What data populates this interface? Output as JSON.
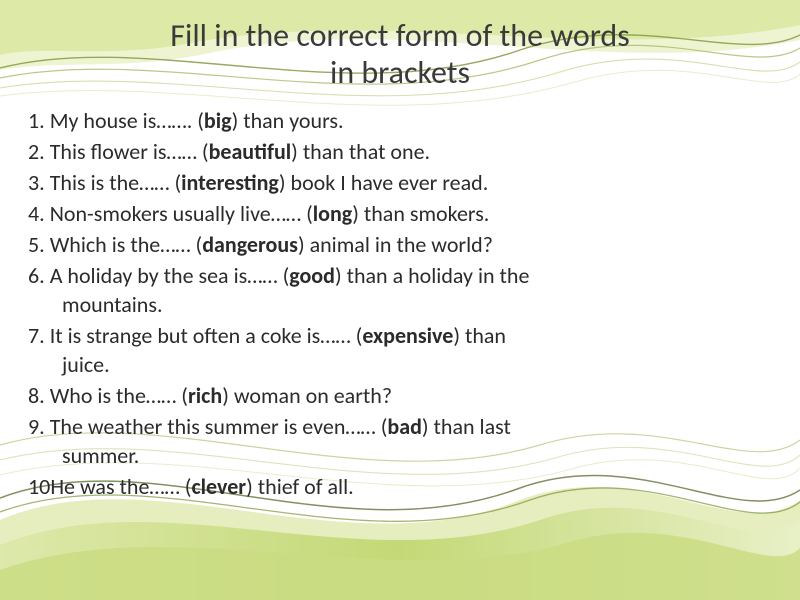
{
  "title_line1": "Fill in the correct form of the words",
  "title_line2": "in brackets",
  "title_fontsize": 32,
  "title_color": "#3a3a3a",
  "body_fontsize": 22,
  "body_color": "#2b2b2b",
  "background_colors": {
    "page": "#ffffff",
    "wave_light": "#e6eec0",
    "wave_mid": "#c8da7a",
    "wave_dark": "#8aa93a",
    "line": "#5a6b2e"
  },
  "items": [
    {
      "n": "1.",
      "pre": " My house is……. (",
      "word": "big",
      "post": ") than yours."
    },
    {
      "n": "2.",
      "pre": " This flower is…… (",
      "word": "beautiful",
      "post": ") than that one."
    },
    {
      "n": "3.",
      "pre": " This is the…… (",
      "word": "interesting",
      "post": ") book I have ever read."
    },
    {
      "n": "4.",
      "pre": " Non-smokers usually live…… (",
      "word": "long",
      "post": ") than smokers."
    },
    {
      "n": "5.",
      "pre": " Which is the…… (",
      "word": "dangerous",
      "post": ") animal in the world?"
    },
    {
      "n": "6.",
      "pre": " A holiday by the sea is…… (",
      "word": "good",
      "post": ") than a holiday in the",
      "cont": "mountains."
    },
    {
      "n": "7.",
      "pre": " It is strange but often a coke is…… (",
      "word": "expensive",
      "post": ") than",
      "cont": "juice."
    },
    {
      "n": "8.",
      "pre": " Who is the…… (",
      "word": "rich",
      "post": ") woman on earth?"
    },
    {
      "n": "9.",
      "pre": " The weather this summer is even…… (",
      "word": "bad",
      "post": ") than last",
      "cont": "summer."
    },
    {
      "n": "10",
      "pre": "He was the…… (",
      "word": "clever",
      "post": ") thief of all."
    }
  ]
}
